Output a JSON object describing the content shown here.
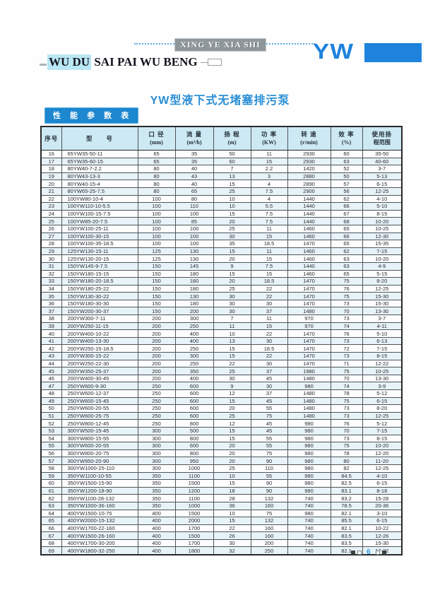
{
  "header": {
    "banner_slogan": "XING YE XIA SHI",
    "brand_text_highlight": "WU DU",
    "brand_text_rest": " SAI PAI WU BENG",
    "logo_text": "YW",
    "title": "YW型液下式无堵塞排污泵",
    "section_label": "性 能 参 数 表"
  },
  "colors": {
    "accent_blue": "#1f82dd",
    "title_blue": "#2b8fd6",
    "table_header_bg": "#cde9f3",
    "row_stripe": "#e7f3f8",
    "page_number_blue": "#2797e4",
    "slogan_box_gray": "#8f979c",
    "brand_highlight_cyan": "#b9e7f3"
  },
  "table": {
    "columns": [
      {
        "label": "序号",
        "sub": ""
      },
      {
        "label": "型　　号",
        "sub": ""
      },
      {
        "label": "口 径",
        "sub": "(mm)"
      },
      {
        "label": "流 量",
        "sub": "(m³/h)"
      },
      {
        "label": "扬 程",
        "sub": "(m)"
      },
      {
        "label": "功 率",
        "sub": "(KW)"
      },
      {
        "label": "转 速",
        "sub": "(r/min)"
      },
      {
        "label": "效 率",
        "sub": "(%)"
      },
      {
        "label": "使用扬",
        "sub": "程范围"
      }
    ],
    "rows": [
      [
        "16",
        "65YW35-50-11",
        "65",
        "35",
        "50",
        "11",
        "2930",
        "60",
        "35-50"
      ],
      [
        "17",
        "65YW35-60-15",
        "65",
        "35",
        "60",
        "15",
        "2930",
        "63",
        "40-60"
      ],
      [
        "18",
        "80YW40-7-2.2",
        "80",
        "40",
        "7",
        "2.2",
        "1420",
        "52",
        "3-7"
      ],
      [
        "19",
        "80YW43-13-3",
        "80",
        "43",
        "13",
        "3",
        "2880",
        "50",
        "5-13"
      ],
      [
        "20",
        "80YW40-15-4",
        "80",
        "40",
        "15",
        "4",
        "2890",
        "57",
        "6-15"
      ],
      [
        "21",
        "80YW65-25-7.5",
        "80",
        "65",
        "25",
        "7.5",
        "2900",
        "56",
        "12-25"
      ],
      [
        "22",
        "100YW80-10-4",
        "100",
        "80",
        "10",
        "4",
        "1440",
        "62",
        "4-10"
      ],
      [
        "23",
        "100YW110-10-5.5",
        "100",
        "110",
        "10",
        "5.5",
        "1440",
        "66",
        "5-10"
      ],
      [
        "24",
        "100YW100-15-7.5",
        "100",
        "100",
        "15",
        "7.5",
        "1440",
        "67",
        "8-15"
      ],
      [
        "25",
        "100YW85-20-7.5",
        "100",
        "85",
        "20",
        "7.5",
        "1440",
        "68",
        "10-20"
      ],
      [
        "26",
        "100YW100-25-11",
        "100",
        "100",
        "25",
        "11",
        "1460",
        "65",
        "10-25"
      ],
      [
        "27",
        "100YW100-30-15",
        "100",
        "100",
        "30",
        "15",
        "1460",
        "66",
        "12-30"
      ],
      [
        "28",
        "100YW100-35-18.5",
        "100",
        "100",
        "35",
        "18.5",
        "1470",
        "65",
        "15-35"
      ],
      [
        "29",
        "125YW130-15-11",
        "125",
        "130",
        "15",
        "11",
        "1460",
        "62",
        "7-15"
      ],
      [
        "30",
        "125YW130-20-15",
        "125",
        "130",
        "20",
        "15",
        "1460",
        "63",
        "10-20"
      ],
      [
        "31",
        "150YW145-9-7.5",
        "150",
        "145",
        "9",
        "7.5",
        "1440",
        "63",
        "4-9"
      ],
      [
        "32",
        "150YW180-15-15",
        "150",
        "180",
        "15",
        "15",
        "1460",
        "65",
        "5-15"
      ],
      [
        "33",
        "150YW180-20-18.5",
        "150",
        "180",
        "20",
        "18.5",
        "1470",
        "75",
        "8-20"
      ],
      [
        "34",
        "150YW180-25-22",
        "150",
        "180",
        "25",
        "22",
        "1470",
        "76",
        "12-25"
      ],
      [
        "35",
        "150YW130-30-22",
        "150",
        "130",
        "30",
        "22",
        "1470",
        "75",
        "15-30"
      ],
      [
        "36",
        "150YW180-30-30",
        "150",
        "180",
        "30",
        "30",
        "1470",
        "73",
        "15-30"
      ],
      [
        "37",
        "150YW200-30-37",
        "150",
        "200",
        "30",
        "37",
        "1480",
        "70",
        "13-30"
      ],
      [
        "38",
        "200YW300-7-11",
        "200",
        "300",
        "7",
        "11",
        "970",
        "73",
        "3-7"
      ],
      [
        "39",
        "200YW250-11-15",
        "200",
        "250",
        "11",
        "15",
        "970",
        "74",
        "4-11"
      ],
      [
        "40",
        "200YW400-10-22",
        "200",
        "400",
        "10",
        "22",
        "1470",
        "76",
        "5-10"
      ],
      [
        "41",
        "200YW400-13-30",
        "200",
        "400",
        "13",
        "30",
        "1470",
        "73",
        "6-13"
      ],
      [
        "42",
        "200YW250-15-18.5",
        "200",
        "250",
        "15",
        "18.5",
        "1470",
        "72",
        "7-15"
      ],
      [
        "43",
        "200YW300-15-22",
        "200",
        "300",
        "15",
        "22",
        "1470",
        "73",
        "8-15"
      ],
      [
        "44",
        "200YW250-22-30",
        "200",
        "250",
        "22",
        "30",
        "1470",
        "71",
        "12-22"
      ],
      [
        "45",
        "200YW350-25-37",
        "200",
        "350",
        "25",
        "37",
        "1980",
        "75",
        "10-25"
      ],
      [
        "46",
        "200YW400-30-45",
        "200",
        "400",
        "30",
        "45",
        "1480",
        "70",
        "13-30"
      ],
      [
        "47",
        "250YW600-9-30",
        "250",
        "600",
        "9",
        "30",
        "980",
        "74",
        "3-9"
      ],
      [
        "48",
        "250YW600-12-37",
        "250",
        "600",
        "12",
        "37",
        "1480",
        "78",
        "5-12"
      ],
      [
        "49",
        "250YW600-15-45",
        "250",
        "600",
        "15",
        "45",
        "1480",
        "75",
        "6-15"
      ],
      [
        "50",
        "250YW600-20-55",
        "250",
        "600",
        "20",
        "55",
        "1480",
        "73",
        "8-20"
      ],
      [
        "51",
        "250YW600-25-75",
        "250",
        "600",
        "25",
        "75",
        "1480",
        "73",
        "12-25"
      ],
      [
        "52",
        "250YW800-12-45",
        "250",
        "800",
        "12",
        "45",
        "980",
        "76",
        "5-12"
      ],
      [
        "53",
        "300YW500-15-45",
        "300",
        "500",
        "15",
        "45",
        "980",
        "70",
        "7-15"
      ],
      [
        "54",
        "300YW800-15-55",
        "300",
        "800",
        "15",
        "55",
        "980",
        "73",
        "8-15"
      ],
      [
        "55",
        "300YW600-20-55",
        "300",
        "600",
        "20",
        "55",
        "980",
        "75",
        "10-20"
      ],
      [
        "56",
        "300YW800-20-75",
        "300",
        "800",
        "20",
        "75",
        "980",
        "78",
        "12-20"
      ],
      [
        "57",
        "300YW950-20-90",
        "300",
        "950",
        "20",
        "90",
        "980",
        "80",
        "11-20"
      ],
      [
        "58",
        "300YW1000-25-110",
        "300",
        "1000",
        "25",
        "110",
        "980",
        "82",
        "12-25"
      ],
      [
        "59",
        "350YW1100-10-55",
        "350",
        "1100",
        "10",
        "55",
        "980",
        "84.5",
        "4-10"
      ],
      [
        "60",
        "350YW1500-15-90",
        "350",
        "1500",
        "15",
        "90",
        "980",
        "82.5",
        "6-15"
      ],
      [
        "61",
        "350YW1200-18-90",
        "350",
        "1200",
        "18",
        "90",
        "980",
        "83.1",
        "8-18"
      ],
      [
        "62",
        "350YW1100-28-132",
        "350",
        "1100",
        "28",
        "132",
        "740",
        "83.2",
        "15-28"
      ],
      [
        "63",
        "350YW1000-36-160",
        "350",
        "1000",
        "36",
        "160",
        "740",
        "78.5",
        "20-36"
      ],
      [
        "64",
        "400YW1500-10-75",
        "400",
        "1500",
        "10",
        "75",
        "980",
        "82.1",
        "3-10"
      ],
      [
        "65",
        "400YW2000-15-132",
        "400",
        "2000",
        "15",
        "132",
        "740",
        "85.5",
        "6-15"
      ],
      [
        "66",
        "400YW1700-22-160",
        "400",
        "1700",
        "22",
        "160",
        "740",
        "82.1",
        "10-22"
      ],
      [
        "67",
        "400YW1500-26-160",
        "400",
        "1500",
        "26",
        "160",
        "740",
        "83.5",
        "12-26"
      ],
      [
        "68",
        "400YW1700-30-200",
        "400",
        "1700",
        "30",
        "200",
        "740",
        "83.5",
        "15-30"
      ],
      [
        "69",
        "400YW1800-32-250",
        "400",
        "1800",
        "32",
        "250",
        "740",
        "82.1",
        "17-32"
      ]
    ]
  },
  "footer": {
    "page_number": "6"
  }
}
